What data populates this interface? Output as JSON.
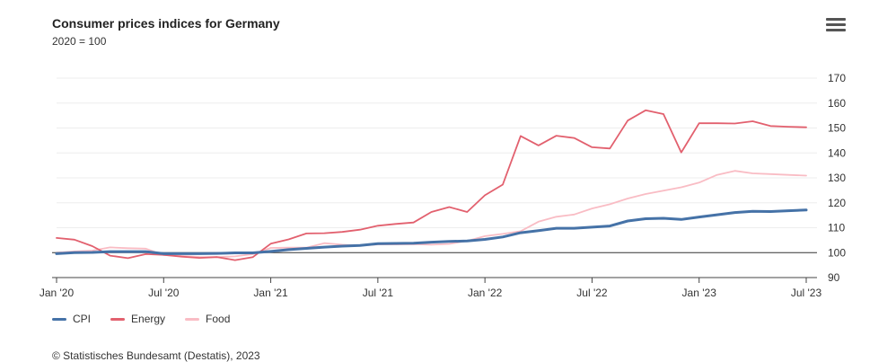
{
  "chart_data": {
    "type": "line",
    "title": "Consumer prices indices for Germany",
    "subtitle": "2020 = 100",
    "x_ticks": [
      "Jan '20",
      "Jul '20",
      "Jan '21",
      "Jul '21",
      "Jan '22",
      "Jul '22",
      "Jan '23",
      "Jul '23"
    ],
    "y_ticks": [
      90,
      100,
      110,
      120,
      130,
      140,
      150,
      160,
      170
    ],
    "ylim": [
      90,
      170
    ],
    "reference_line": 100,
    "x_months_start": "2020-01",
    "series": [
      {
        "name": "CPI",
        "color": "#4572a7",
        "values": [
          99.6,
          100.0,
          100.1,
          100.4,
          100.4,
          100.4,
          99.6,
          99.6,
          99.6,
          99.7,
          99.9,
          99.9,
          100.5,
          101.2,
          101.7,
          102.2,
          102.6,
          102.9,
          103.6,
          103.7,
          103.8,
          104.2,
          104.5,
          104.7,
          105.3,
          106.3,
          108.0,
          108.8,
          109.8,
          109.8,
          110.2,
          110.7,
          112.7,
          113.6,
          113.8,
          113.3,
          114.3,
          115.2,
          116.1,
          116.6,
          116.5,
          116.8,
          117.1
        ],
        "labels_visible": false
      },
      {
        "name": "Energy",
        "color": "#e2606e",
        "values": [
          105.9,
          105.2,
          102.6,
          98.8,
          97.8,
          99.4,
          99.1,
          98.4,
          97.9,
          98.2,
          97.0,
          98.2,
          103.6,
          105.3,
          107.7,
          107.8,
          108.3,
          109.2,
          110.8,
          111.5,
          112.1,
          116.3,
          118.3,
          116.3,
          123.0,
          127.3,
          146.8,
          143.0,
          146.9,
          146.0,
          142.3,
          141.8,
          153.0,
          157.1,
          155.6,
          140.2,
          151.9,
          151.9,
          151.8,
          152.7,
          150.8,
          150.5,
          150.3
        ],
        "labels_visible": false
      },
      {
        "name": "Food",
        "color": "#f9bcc4",
        "values": [
          100.0,
          100.5,
          100.8,
          102.1,
          101.8,
          101.6,
          99.0,
          98.7,
          98.3,
          98.2,
          98.5,
          99.4,
          101.9,
          102.0,
          102.0,
          103.8,
          103.2,
          102.8,
          103.3,
          103.3,
          103.4,
          103.2,
          103.5,
          104.7,
          106.6,
          107.5,
          108.6,
          112.4,
          114.4,
          115.3,
          117.7,
          119.4,
          121.7,
          123.5,
          124.9,
          126.2,
          128.1,
          131.2,
          132.8,
          131.8,
          131.5,
          131.2,
          130.9
        ],
        "labels_visible": false
      }
    ],
    "legend_position": "bottom-left",
    "grid": true
  },
  "credits": "© Statistisches Bundesamt (Destatis), 2023",
  "menu_icon": "hamburger-menu-icon"
}
